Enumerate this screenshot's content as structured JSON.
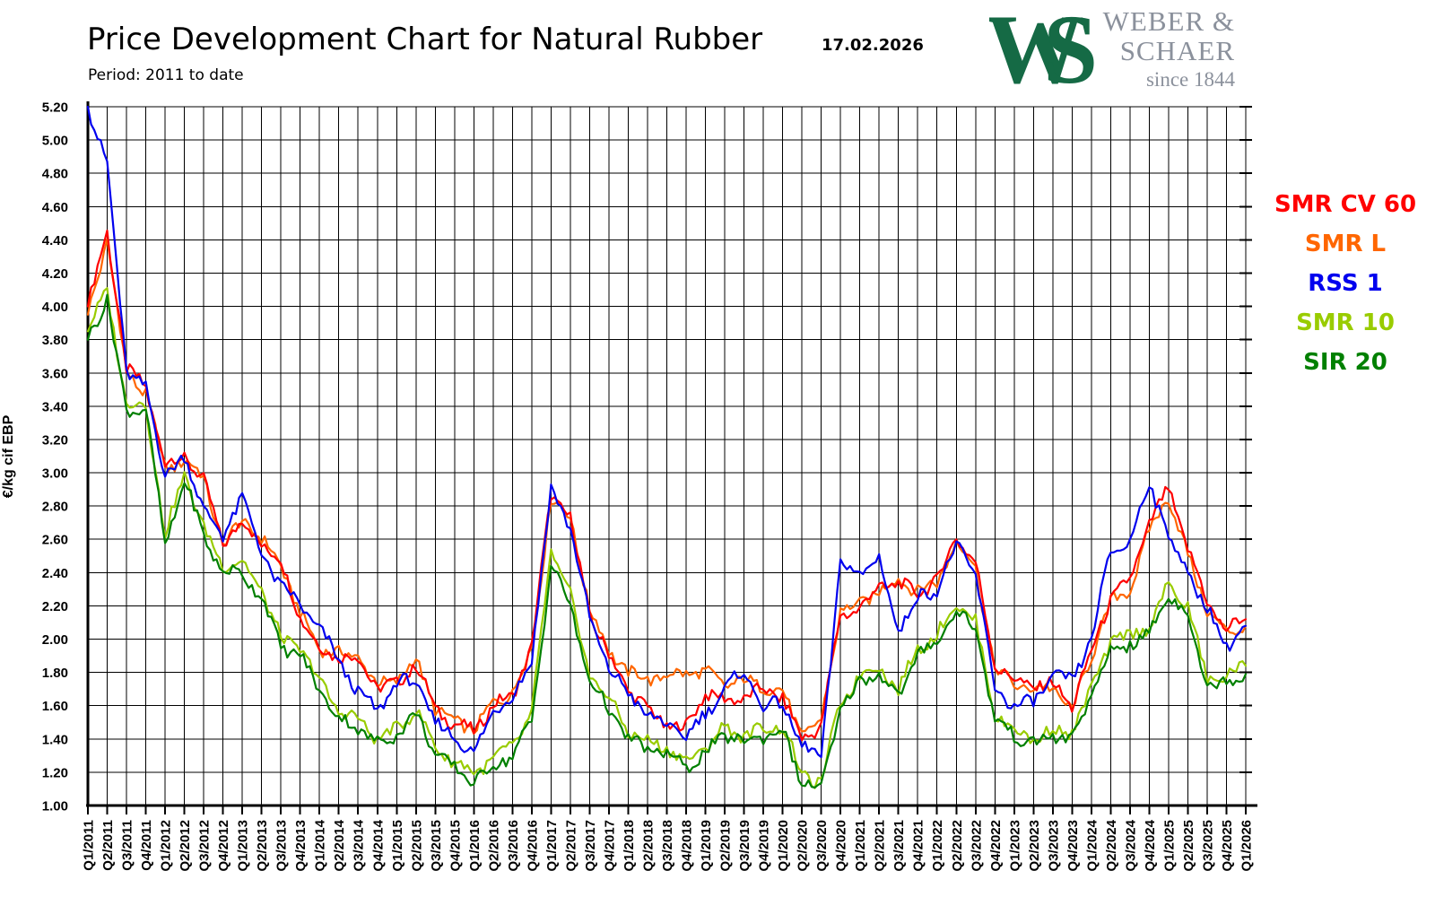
{
  "header": {
    "title": "Price Development Chart for Natural Rubber",
    "subtitle": "Period: 2011 to date",
    "date": "17.02.2026"
  },
  "logo": {
    "monogram_w": "W",
    "monogram_s": "S",
    "line1": "WEBER &",
    "line2": "SCHAER",
    "line3": "since 1844",
    "green": "#156a45",
    "gray": "#8b919c"
  },
  "chart_data": {
    "type": "line",
    "title": "Price Development Chart for Natural Rubber",
    "xlabel": "",
    "ylabel": "€/kg cif EBP",
    "ylim": [
      1.0,
      5.2
    ],
    "ytick_step": 0.2,
    "grid": true,
    "legend_position": "right",
    "draw_order": [
      1,
      0,
      2,
      3,
      4
    ],
    "yticks": [
      "1.00",
      "1.20",
      "1.40",
      "1.60",
      "1.80",
      "2.00",
      "2.20",
      "2.40",
      "2.60",
      "2.80",
      "3.00",
      "3.20",
      "3.40",
      "3.60",
      "3.80",
      "4.00",
      "4.20",
      "4.40",
      "4.60",
      "4.80",
      "5.00",
      "5.20"
    ],
    "categories": [
      "Q1/2011",
      "Q2/2011",
      "Q3/2011",
      "Q4/2011",
      "Q1/2012",
      "Q2/2012",
      "Q3/2012",
      "Q4/2012",
      "Q1/2013",
      "Q2/2013",
      "Q3/2013",
      "Q4/2013",
      "Q1/2014",
      "Q2/2014",
      "Q3/2014",
      "Q4/2014",
      "Q1/2015",
      "Q2/2015",
      "Q3/2015",
      "Q4/2015",
      "Q1/2016",
      "Q2/2016",
      "Q3/2016",
      "Q4/2016",
      "Q1/2017",
      "Q2/2017",
      "Q3/2017",
      "Q4/2017",
      "Q1/2018",
      "Q2/2018",
      "Q3/2018",
      "Q4/2018",
      "Q1/2019",
      "Q2/2019",
      "Q3/2019",
      "Q4/2019",
      "Q1/2020",
      "Q2/2020",
      "Q3/2020",
      "Q4/2020",
      "Q1/2021",
      "Q2/2021",
      "Q3/2021",
      "Q4/2021",
      "Q1/2022",
      "Q2/2022",
      "Q3/2022",
      "Q4/2022",
      "Q1/2023",
      "Q2/2023",
      "Q3/2023",
      "Q4/2023",
      "Q1/2024",
      "Q2/2024",
      "Q3/2024",
      "Q4/2024",
      "Q1/2025",
      "Q2/2025",
      "Q3/2025",
      "Q4/2025",
      "Q1/2026"
    ],
    "series": [
      {
        "name": "SMR CV 60",
        "color": "#ff0000",
        "values": [
          4.0,
          4.45,
          3.62,
          3.52,
          3.05,
          3.1,
          2.95,
          2.58,
          2.7,
          2.58,
          2.46,
          2.14,
          1.94,
          1.9,
          1.88,
          1.71,
          1.73,
          1.85,
          1.58,
          1.49,
          1.45,
          1.6,
          1.66,
          1.95,
          2.88,
          2.72,
          2.15,
          1.9,
          1.7,
          1.58,
          1.48,
          1.47,
          1.68,
          1.63,
          1.65,
          1.7,
          1.65,
          1.4,
          1.48,
          2.15,
          2.18,
          2.32,
          2.33,
          2.28,
          2.35,
          2.62,
          2.45,
          1.85,
          1.75,
          1.72,
          1.73,
          1.6,
          1.92,
          2.25,
          2.35,
          2.7,
          2.9,
          2.55,
          2.22,
          2.06,
          2.12
        ]
      },
      {
        "name": "SMR L",
        "color": "#ff6600",
        "values": [
          3.95,
          4.4,
          3.6,
          3.48,
          3.02,
          3.08,
          2.97,
          2.56,
          2.72,
          2.6,
          2.45,
          2.15,
          1.95,
          1.91,
          1.9,
          1.72,
          1.76,
          1.87,
          1.59,
          1.5,
          1.46,
          1.61,
          1.68,
          1.94,
          2.85,
          2.73,
          2.18,
          1.93,
          1.8,
          1.76,
          1.78,
          1.8,
          1.8,
          1.73,
          1.75,
          1.72,
          1.68,
          1.43,
          1.5,
          2.18,
          2.2,
          2.3,
          2.35,
          2.3,
          2.33,
          2.6,
          2.42,
          1.82,
          1.73,
          1.7,
          1.71,
          1.57,
          1.9,
          2.22,
          2.3,
          2.65,
          2.86,
          2.5,
          2.18,
          2.03,
          2.08
        ]
      },
      {
        "name": "RSS 1",
        "color": "#0000ee",
        "values": [
          5.2,
          4.85,
          3.62,
          3.5,
          3.0,
          3.08,
          2.8,
          2.6,
          2.88,
          2.5,
          2.33,
          2.2,
          2.07,
          1.87,
          1.68,
          1.57,
          1.74,
          1.75,
          1.49,
          1.42,
          1.3,
          1.58,
          1.64,
          1.89,
          2.9,
          2.68,
          2.12,
          1.83,
          1.67,
          1.55,
          1.48,
          1.42,
          1.55,
          1.7,
          1.81,
          1.59,
          1.62,
          1.35,
          1.3,
          2.45,
          2.4,
          2.48,
          2.05,
          2.25,
          2.3,
          2.56,
          2.4,
          1.7,
          1.6,
          1.62,
          1.78,
          1.75,
          2.0,
          2.53,
          2.58,
          2.95,
          2.62,
          2.4,
          2.18,
          1.96,
          2.08
        ]
      },
      {
        "name": "SMR 10",
        "color": "#99cc00",
        "values": [
          3.85,
          4.1,
          3.4,
          3.42,
          2.62,
          3.0,
          2.66,
          2.45,
          2.46,
          2.3,
          2.0,
          1.95,
          1.75,
          1.57,
          1.52,
          1.4,
          1.46,
          1.58,
          1.35,
          1.26,
          1.2,
          1.28,
          1.36,
          1.55,
          2.53,
          2.26,
          1.79,
          1.64,
          1.45,
          1.38,
          1.35,
          1.26,
          1.35,
          1.47,
          1.42,
          1.46,
          1.48,
          1.18,
          1.14,
          1.62,
          1.78,
          1.84,
          1.69,
          1.95,
          2.02,
          2.22,
          2.1,
          1.55,
          1.45,
          1.4,
          1.45,
          1.44,
          1.7,
          1.99,
          2.02,
          2.08,
          2.32,
          2.2,
          1.75,
          1.78,
          1.84
        ]
      },
      {
        "name": "SIR 20",
        "color": "#008000",
        "values": [
          3.8,
          4.05,
          3.36,
          3.4,
          2.55,
          2.96,
          2.62,
          2.4,
          2.4,
          2.25,
          1.96,
          1.9,
          1.7,
          1.52,
          1.47,
          1.37,
          1.43,
          1.55,
          1.32,
          1.22,
          1.15,
          1.23,
          1.31,
          1.5,
          2.45,
          2.2,
          1.75,
          1.58,
          1.4,
          1.34,
          1.31,
          1.23,
          1.31,
          1.43,
          1.38,
          1.42,
          1.45,
          1.14,
          1.1,
          1.58,
          1.74,
          1.8,
          1.65,
          1.91,
          1.98,
          2.18,
          2.06,
          1.52,
          1.42,
          1.37,
          1.42,
          1.4,
          1.66,
          1.93,
          1.97,
          2.03,
          2.27,
          2.15,
          1.72,
          1.74,
          1.79
        ]
      }
    ]
  }
}
